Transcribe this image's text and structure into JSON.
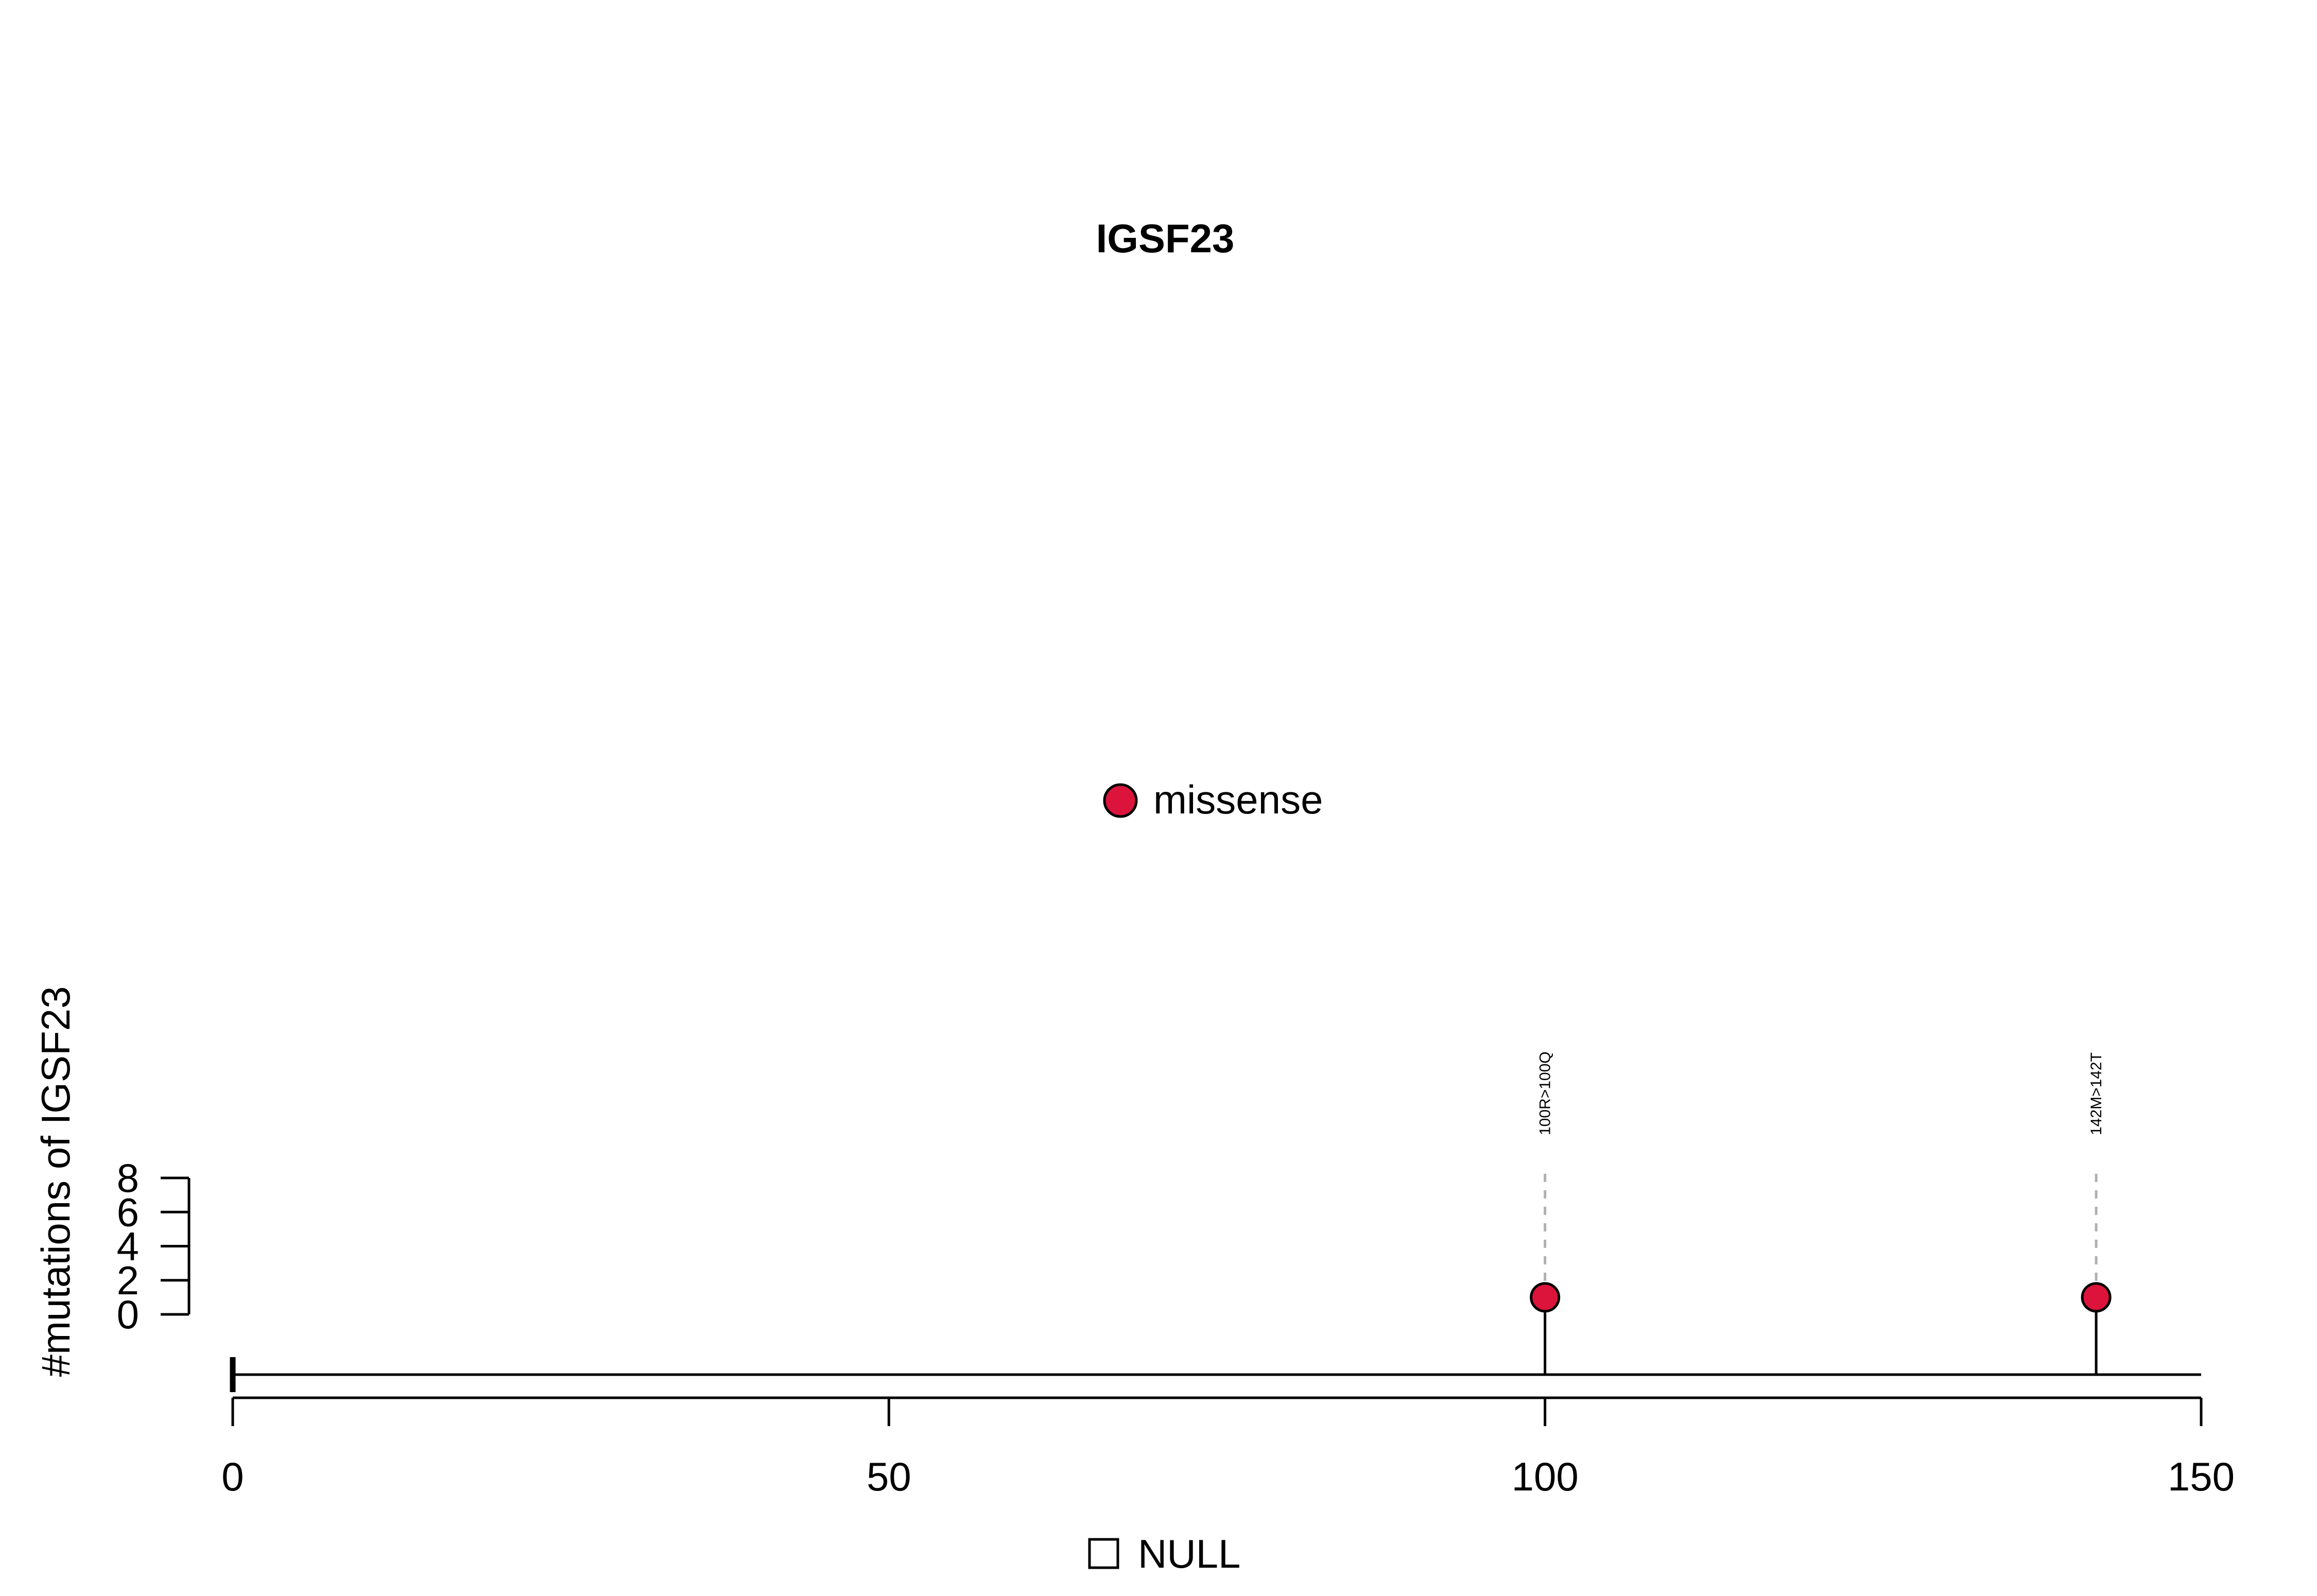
{
  "chart_data": {
    "type": "lollipop",
    "title": "IGSF23",
    "ylabel": "#mutations of IGSF23",
    "xlabel": "",
    "xlim": [
      0,
      150
    ],
    "ylim": [
      0,
      8
    ],
    "x_ticks": [
      0,
      50,
      100,
      150
    ],
    "y_ticks": [
      0,
      2,
      4,
      6,
      8
    ],
    "protein_length": 150,
    "legend": [
      {
        "label": "missense",
        "color": "#DC143C",
        "shape": "circle",
        "placement": "center-top"
      }
    ],
    "domain_legend": [
      {
        "label": "NULL",
        "color": "#ffffff",
        "shape": "square",
        "placement": "bottom-center"
      }
    ],
    "mutations": [
      {
        "position": 100,
        "count": 1,
        "type": "missense",
        "label": "100R>100Q",
        "color": "#DC143C"
      },
      {
        "position": 142,
        "count": 1,
        "type": "missense",
        "label": "142M>142T",
        "color": "#DC143C"
      }
    ],
    "grid": false
  }
}
